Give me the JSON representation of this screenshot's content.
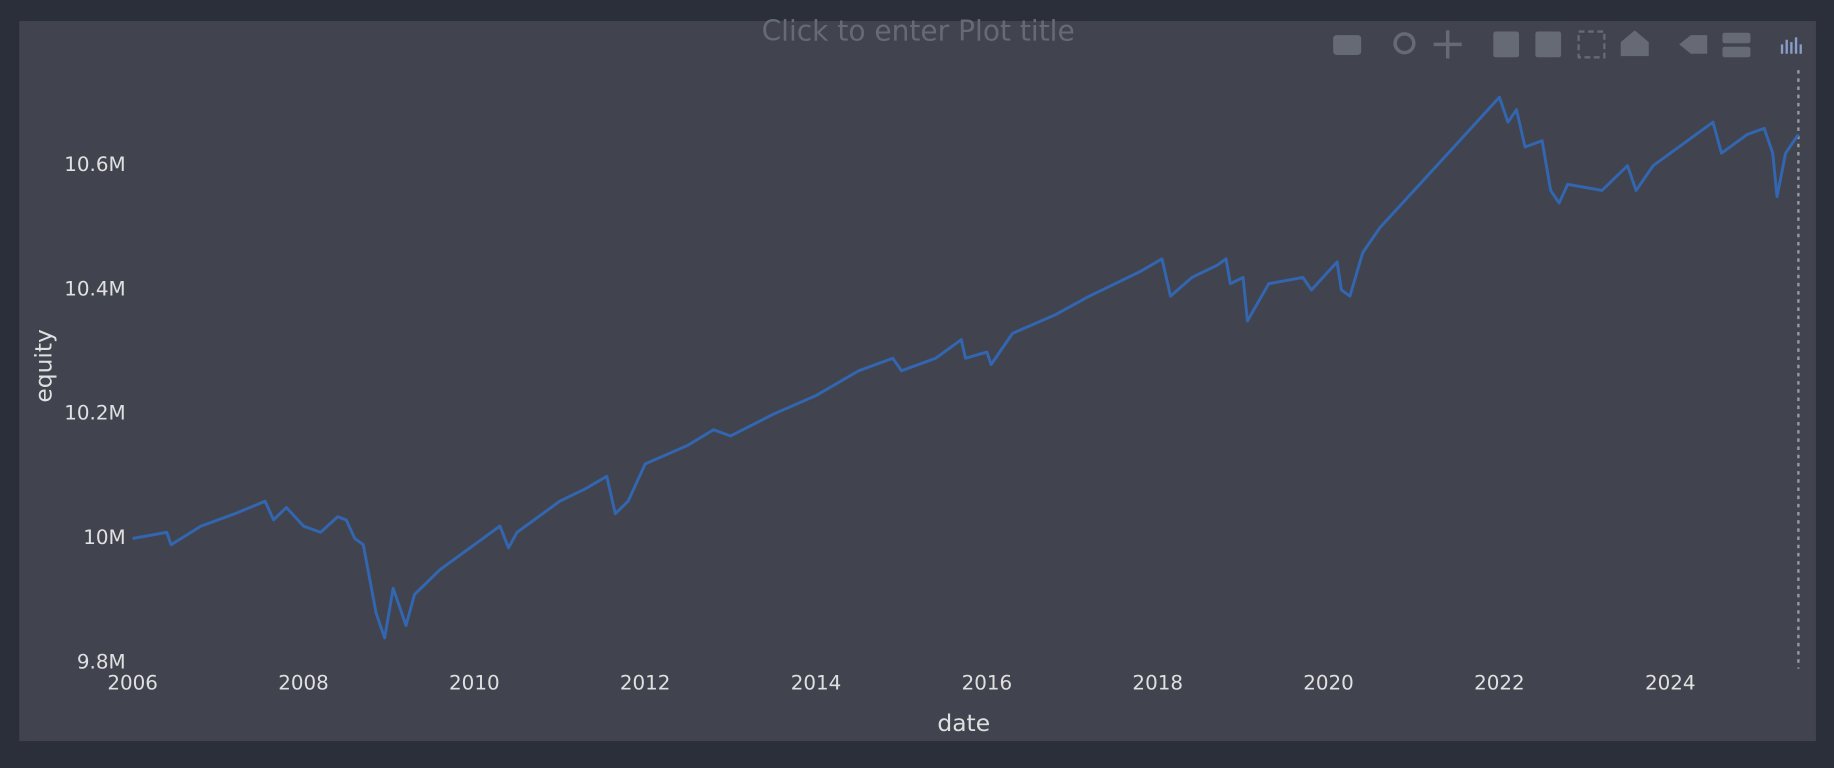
{
  "chart_data": {
    "type": "line",
    "title": "Click to enter Plot title",
    "x_label": "date",
    "y_label": "equity",
    "color": "#3366b0",
    "grid": false,
    "xlim": [
      2006,
      2025.5
    ],
    "xticks": [
      2006,
      2008,
      2010,
      2012,
      2014,
      2016,
      2018,
      2020,
      2022,
      2024
    ],
    "ylim": [
      9800000,
      10780000
    ],
    "yticks": [
      {
        "value": 9800000,
        "label": "9.8M"
      },
      {
        "value": 10000000,
        "label": "10M"
      },
      {
        "value": 10200000,
        "label": "10.2M"
      },
      {
        "value": 10400000,
        "label": "10.4M"
      },
      {
        "value": 10600000,
        "label": "10.6M"
      }
    ],
    "x": [
      2006.0,
      2006.4,
      2006.45,
      2006.8,
      2007.2,
      2007.55,
      2007.65,
      2007.8,
      2008.0,
      2008.2,
      2008.4,
      2008.5,
      2008.6,
      2008.7,
      2008.85,
      2008.95,
      2009.05,
      2009.15,
      2009.2,
      2009.3,
      2009.6,
      2010.0,
      2010.3,
      2010.4,
      2010.5,
      2010.8,
      2011.0,
      2011.3,
      2011.55,
      2011.65,
      2011.8,
      2012.0,
      2012.5,
      2012.8,
      2013.0,
      2013.5,
      2014.0,
      2014.5,
      2014.9,
      2015.0,
      2015.4,
      2015.7,
      2015.75,
      2016.0,
      2016.05,
      2016.3,
      2016.8,
      2017.2,
      2017.8,
      2018.05,
      2018.15,
      2018.4,
      2018.7,
      2018.8,
      2018.85,
      2019.0,
      2019.05,
      2019.3,
      2019.7,
      2019.8,
      2020.0,
      2020.1,
      2020.15,
      2020.25,
      2020.4,
      2020.6,
      2020.8,
      2021.0,
      2021.4,
      2021.8,
      2022.0,
      2022.1,
      2022.2,
      2022.3,
      2022.5,
      2022.6,
      2022.7,
      2022.8,
      2023.2,
      2023.5,
      2023.6,
      2023.8,
      2024.2,
      2024.5,
      2024.6,
      2024.9,
      2025.1,
      2025.2,
      2025.25,
      2025.35,
      2025.5
    ],
    "values": [
      10000000,
      10010000,
      9990000,
      10020000,
      10040000,
      10060000,
      10030000,
      10050000,
      10020000,
      10010000,
      10035000,
      10030000,
      10000000,
      9990000,
      9880000,
      9840000,
      9920000,
      9880000,
      9860000,
      9910000,
      9950000,
      9990000,
      10020000,
      9985000,
      10010000,
      10040000,
      10060000,
      10080000,
      10100000,
      10040000,
      10060000,
      10120000,
      10150000,
      10175000,
      10165000,
      10200000,
      10230000,
      10270000,
      10290000,
      10270000,
      10290000,
      10320000,
      10290000,
      10300000,
      10280000,
      10330000,
      10360000,
      10390000,
      10430000,
      10450000,
      10390000,
      10420000,
      10440000,
      10450000,
      10410000,
      10420000,
      10350000,
      10410000,
      10420000,
      10400000,
      10430000,
      10445000,
      10400000,
      10390000,
      10460000,
      10500000,
      10530000,
      10560000,
      10620000,
      10680000,
      10710000,
      10670000,
      10690000,
      10630000,
      10640000,
      10560000,
      10540000,
      10570000,
      10560000,
      10600000,
      10560000,
      10600000,
      10640000,
      10670000,
      10620000,
      10650000,
      10660000,
      10620000,
      10550000,
      10620000,
      10650000
    ]
  }
}
